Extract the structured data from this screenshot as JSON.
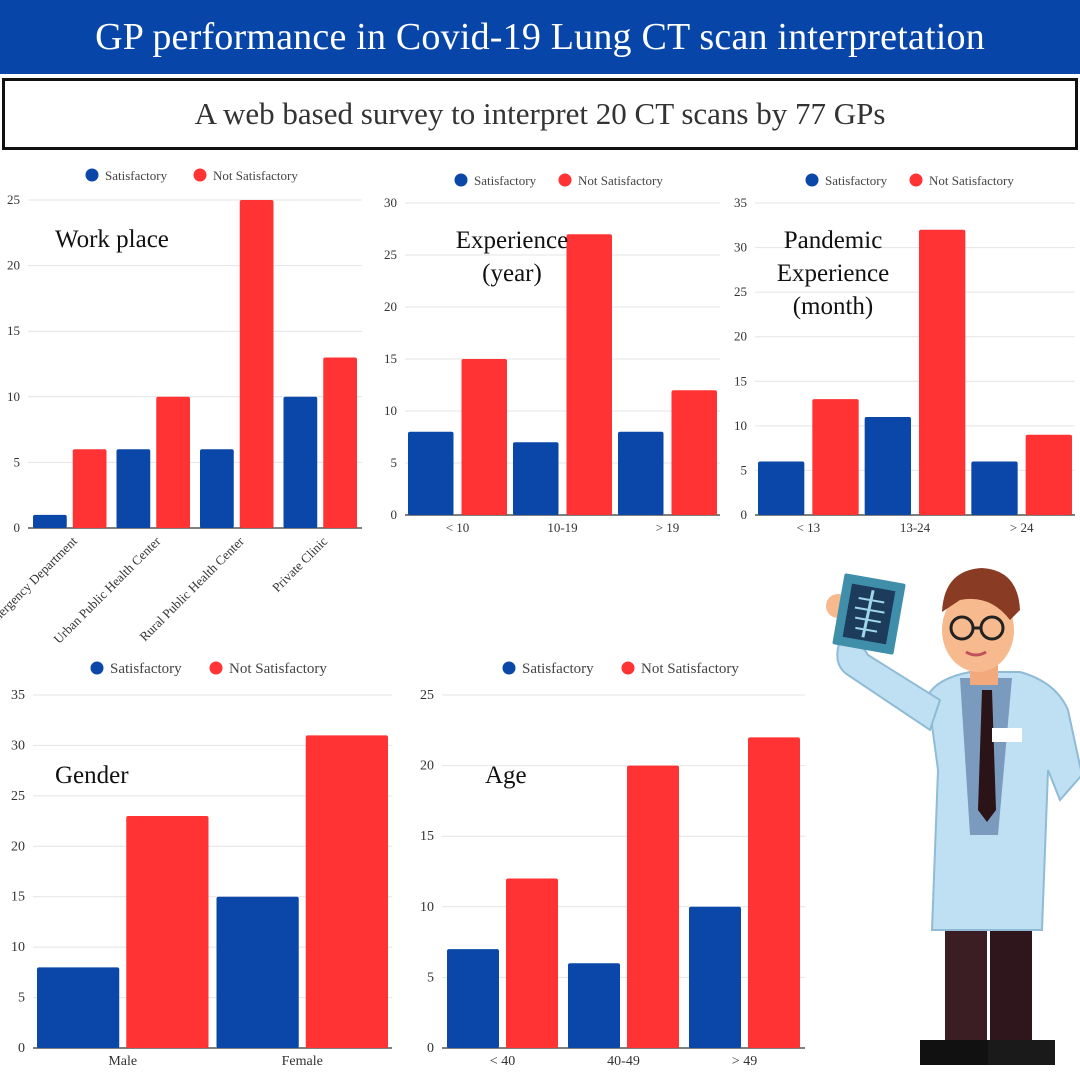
{
  "header": {
    "title": "GP performance in Covid-19 Lung CT scan interpretation",
    "subtitle": "A web based survey to interpret 20 CT scans by 77 GPs"
  },
  "colors": {
    "satisfactory": "#0a47a8",
    "not_satisfactory": "#ff3333",
    "banner": "#0746a8"
  },
  "chart_data": [
    {
      "id": "workplace",
      "type": "bar",
      "title": [
        "Work place"
      ],
      "categories": [
        "Emergency Department",
        "Urban Public Health Center",
        "Rural Public Health Center",
        "Private Clinic"
      ],
      "series": [
        {
          "name": "Satisfactory",
          "values": [
            1,
            6,
            6,
            10
          ]
        },
        {
          "name": "Not Satisfactory",
          "values": [
            6,
            10,
            25,
            13
          ]
        }
      ],
      "ylim": [
        0,
        25
      ],
      "yticks": [
        0,
        5,
        10,
        15,
        20,
        25
      ],
      "legend": "top",
      "grid": true
    },
    {
      "id": "experience",
      "type": "bar",
      "title": [
        "Experience",
        "(year)"
      ],
      "categories": [
        "< 10",
        "10-19",
        "> 19"
      ],
      "series": [
        {
          "name": "Satisfactory",
          "values": [
            8,
            7,
            8
          ]
        },
        {
          "name": "Not Satisfactory",
          "values": [
            15,
            27,
            12
          ]
        }
      ],
      "ylim": [
        0,
        30
      ],
      "yticks": [
        0,
        5,
        10,
        15,
        20,
        25,
        30
      ],
      "legend": "top",
      "grid": true
    },
    {
      "id": "pandemic",
      "type": "bar",
      "title": [
        "Pandemic",
        "Experience",
        "(month)"
      ],
      "categories": [
        "< 13",
        "13-24",
        "> 24"
      ],
      "series": [
        {
          "name": "Satisfactory",
          "values": [
            6,
            11,
            6
          ]
        },
        {
          "name": "Not Satisfactory",
          "values": [
            13,
            32,
            9
          ]
        }
      ],
      "ylim": [
        0,
        35
      ],
      "yticks": [
        0,
        5,
        10,
        15,
        20,
        25,
        30,
        35
      ],
      "legend": "top",
      "grid": true
    },
    {
      "id": "gender",
      "type": "bar",
      "title": [
        "Gender"
      ],
      "categories": [
        "Male",
        "Female"
      ],
      "series": [
        {
          "name": "Satisfactory",
          "values": [
            8,
            15
          ]
        },
        {
          "name": "Not Satisfactory",
          "values": [
            23,
            31
          ]
        }
      ],
      "ylim": [
        0,
        35
      ],
      "yticks": [
        0,
        5,
        10,
        15,
        20,
        25,
        30,
        35
      ],
      "legend": "top",
      "grid": true
    },
    {
      "id": "age",
      "type": "bar",
      "title": [
        "Age"
      ],
      "categories": [
        "< 40",
        "40-49",
        "> 49"
      ],
      "series": [
        {
          "name": "Satisfactory",
          "values": [
            7,
            6,
            10
          ]
        },
        {
          "name": "Not Satisfactory",
          "values": [
            12,
            20,
            22
          ]
        }
      ],
      "ylim": [
        0,
        25
      ],
      "yticks": [
        0,
        5,
        10,
        15,
        20,
        25
      ],
      "legend": "top",
      "grid": true
    }
  ]
}
